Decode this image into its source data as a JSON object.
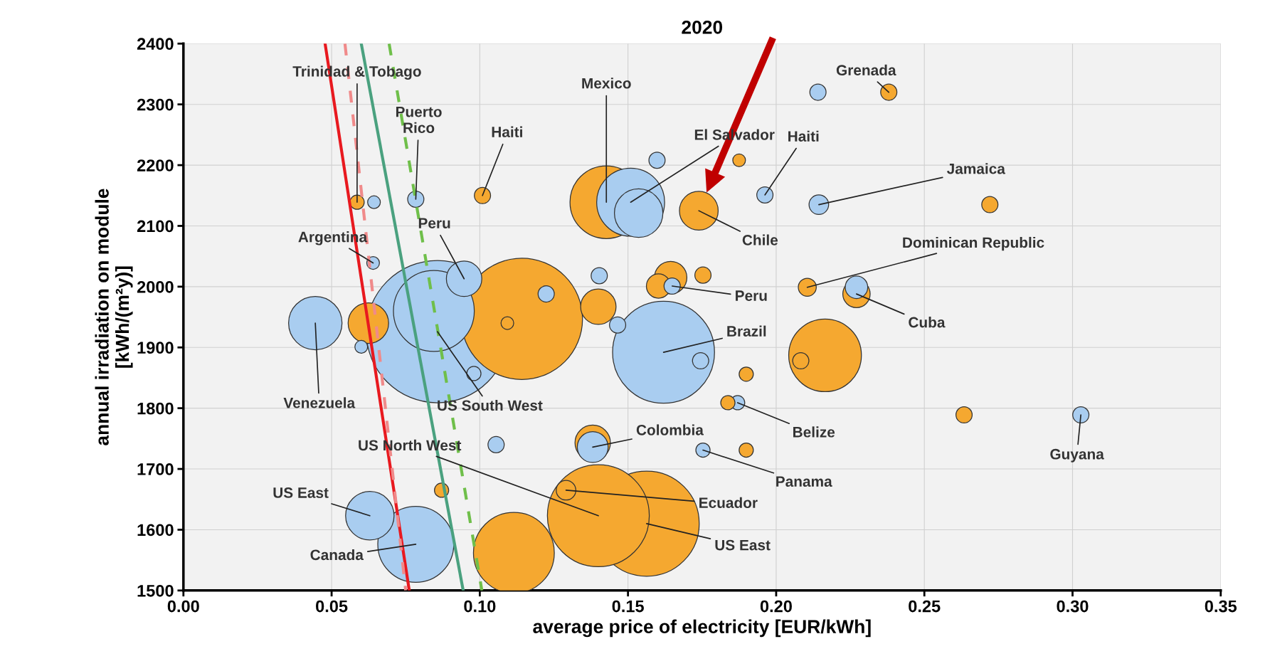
{
  "chart_data": {
    "type": "bubble",
    "title": "2020",
    "xlabel": "average price of electricity [EUR/kWh]",
    "ylabel": "annual irradiation on module\n[kWh/(m²y)]",
    "xlim": [
      0,
      0.35
    ],
    "xticks": [
      {
        "value": 0,
        "label": "0.00"
      },
      {
        "value": 0.05,
        "label": "0.05"
      },
      {
        "value": 0.1,
        "label": "0.10"
      },
      {
        "value": 0.15,
        "label": "0.15"
      },
      {
        "value": 0.2,
        "label": "0.20"
      },
      {
        "value": 0.25,
        "label": "0.25"
      },
      {
        "value": 0.3,
        "label": "0.30"
      },
      {
        "value": 0.35,
        "label": "0.35"
      }
    ],
    "ylim": [
      1500,
      2400
    ],
    "yticks": [
      1500,
      1600,
      1700,
      1800,
      1900,
      2000,
      2100,
      2200,
      2300,
      2400
    ],
    "grid": true,
    "series": [
      {
        "type": "bubble",
        "color": "#a9cdf0",
        "x": [
          0.0643,
          0.0784,
          0.1509,
          0.1536,
          0.1598,
          0.1962,
          0.2141,
          0.2144,
          0.064,
          0.0857,
          0.0845,
          0.0947,
          0.1224,
          0.1403,
          0.1465,
          0.098,
          0.0445,
          0.06,
          0.1649,
          0.162,
          0.1745,
          0.187,
          0.2271,
          0.3028,
          0.1055,
          0.1381,
          0.1753,
          0.0629,
          0.0784
        ],
        "values": [
          2139,
          2144,
          2139,
          2121,
          2208,
          2151,
          2320,
          2135,
          2039,
          1926,
          1960,
          2013,
          1988,
          2018,
          1937,
          1857,
          1940,
          1901,
          2001,
          1892,
          1878,
          1809,
          1999,
          1789,
          1740,
          1736,
          1731,
          1623,
          1576
        ],
        "sizes": [
          0.008,
          0.013,
          0.228,
          0.116,
          0.013,
          0.013,
          0.013,
          0.019,
          0.008,
          1,
          0.323,
          0.062,
          0.013,
          0.013,
          0.013,
          0.01,
          0.141,
          0.008,
          0.013,
          0.513,
          0.013,
          0.01,
          0.025,
          0.013,
          0.013,
          0.047,
          0.01,
          0.116,
          0.285
        ]
      },
      {
        "type": "bubble",
        "color": "#f5a830",
        "x": [
          0.0586,
          0.1009,
          0.1427,
          0.1739,
          0.1875,
          0.238,
          0.2721,
          0.1142,
          0.14,
          0.1093,
          0.0624,
          0.1644,
          0.1603,
          0.1753,
          0.2165,
          0.2083,
          0.1899,
          0.1837,
          0.2105,
          0.2271,
          0.2634,
          0.1381,
          0.1899,
          0.0871,
          0.14,
          0.1563,
          0.1115,
          0.1291
        ],
        "values": [
          2139,
          2150,
          2139,
          2125,
          2208,
          2320,
          2135,
          1947,
          1967,
          1940,
          1940,
          2015,
          2001,
          2019,
          1887,
          1878,
          1856,
          1809,
          1999,
          1988,
          1789,
          1743,
          1731,
          1665,
          1623,
          1610,
          1562,
          1665
        ],
        "sizes": [
          0.01,
          0.013,
          0.261,
          0.074,
          0.008,
          0.013,
          0.013,
          0.726,
          0.062,
          0.008,
          0.081,
          0.052,
          0.029,
          0.013,
          0.261,
          0.013,
          0.01,
          0.01,
          0.016,
          0.037,
          0.013,
          0.062,
          0.01,
          0.01,
          0.513,
          0.546,
          0.323,
          0.019
        ]
      },
      {
        "type": "line",
        "color": "#e8191f",
        "line_style": "solid",
        "x": [
          0.0478,
          0.0762
        ],
        "values": [
          2400,
          1500
        ]
      },
      {
        "type": "line",
        "color": "#4aa17f",
        "line_style": "solid",
        "x": [
          0.06,
          0.0944
        ],
        "values": [
          2400,
          1500
        ]
      },
      {
        "type": "line",
        "color": "#f08a8a",
        "line_style": "dashed",
        "x": [
          0.0545,
          0.075
        ],
        "values": [
          2400,
          1500
        ]
      },
      {
        "type": "line",
        "color": "#6fbf4a",
        "line_style": "dashed",
        "x": [
          0.0694,
          0.1007
        ],
        "values": [
          2400,
          1500
        ]
      }
    ],
    "annotations": [
      {
        "text": "Trinidad & Tobago",
        "x": 0.0586,
        "y": 2139
      },
      {
        "text": "Puerto\nRico",
        "x": 0.0784,
        "y": 2144
      },
      {
        "text": "Haiti",
        "x": 0.1009,
        "y": 2150
      },
      {
        "text": "Mexico",
        "x": 0.1427,
        "y": 2139
      },
      {
        "text": "El Salvador",
        "x": 0.1509,
        "y": 2139
      },
      {
        "text": "Haiti",
        "x": 0.1962,
        "y": 2151
      },
      {
        "text": "Grenada",
        "x": 0.238,
        "y": 2320
      },
      {
        "text": "Jamaica",
        "x": 0.2144,
        "y": 2135
      },
      {
        "text": "Chile",
        "x": 0.1739,
        "y": 2125
      },
      {
        "text": "Dominican Republic",
        "x": 0.2105,
        "y": 1999
      },
      {
        "text": "Peru",
        "x": 0.0947,
        "y": 2013
      },
      {
        "text": "Argentina",
        "x": 0.064,
        "y": 2039
      },
      {
        "text": "Peru",
        "x": 0.1649,
        "y": 2001
      },
      {
        "text": "Cuba",
        "x": 0.2271,
        "y": 1988
      },
      {
        "text": "Brazil",
        "x": 0.162,
        "y": 1892
      },
      {
        "text": "Venezuela",
        "x": 0.0445,
        "y": 1940
      },
      {
        "text": "US South West",
        "x": 0.0857,
        "y": 1926
      },
      {
        "text": "Belize",
        "x": 0.187,
        "y": 1809
      },
      {
        "text": "Guyana",
        "x": 0.3028,
        "y": 1789
      },
      {
        "text": "Colombia",
        "x": 0.1381,
        "y": 1736
      },
      {
        "text": "US North West",
        "x": 0.14,
        "y": 1623
      },
      {
        "text": "Panama",
        "x": 0.1753,
        "y": 1731
      },
      {
        "text": "US East",
        "x": 0.0629,
        "y": 1623
      },
      {
        "text": "Ecuador",
        "x": 0.1291,
        "y": 1665
      },
      {
        "text": "US East",
        "x": 0.1563,
        "y": 1610
      },
      {
        "text": "Canada",
        "x": 0.0784,
        "y": 1576
      }
    ]
  }
}
